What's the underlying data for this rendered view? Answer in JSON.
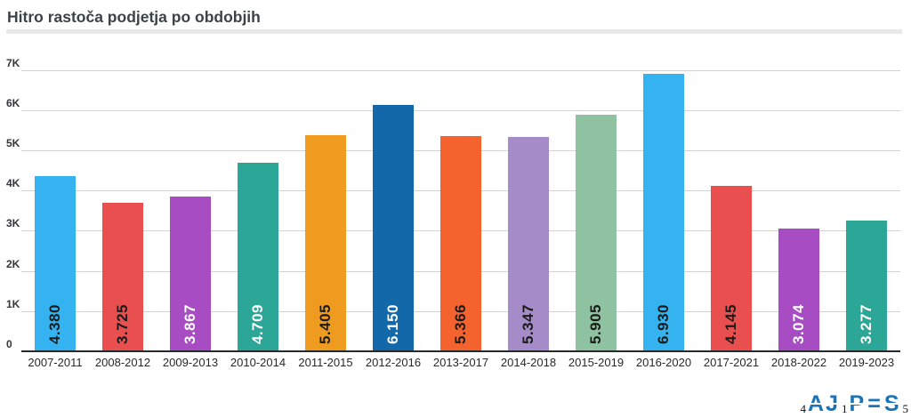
{
  "page": {
    "title": "Hitro rastoča podjetja po obdobjih"
  },
  "chart_data": {
    "type": "bar",
    "title": "Hitro rastoča podjetja po obdobjih",
    "categories": [
      "2007-2011",
      "2008-2012",
      "2009-2013",
      "2010-2014",
      "2011-2015",
      "2012-2016",
      "2013-2017",
      "2014-2018",
      "2015-2019",
      "2016-2020",
      "2017-2021",
      "2018-2022",
      "2019-2023"
    ],
    "values": [
      4380,
      3725,
      3867,
      4709,
      5405,
      6150,
      5366,
      5347,
      5905,
      6930,
      4145,
      3074,
      3277
    ],
    "value_labels": [
      "4.380",
      "3.725",
      "3.867",
      "4.709",
      "5.405",
      "6.150",
      "5.366",
      "5.347",
      "5.905",
      "6.930",
      "4.145",
      "3.074",
      "3.277"
    ],
    "bar_colors": [
      "#35b2f0",
      "#ea4f4f",
      "#a84cc3",
      "#2ba697",
      "#ef9b20",
      "#1268a9",
      "#f4632e",
      "#a58cc8",
      "#8fc2a0",
      "#35b2f0",
      "#ea4f4f",
      "#a84cc3",
      "#2ba697"
    ],
    "value_label_colors": [
      "#1b1b1b",
      "#1b1b1b",
      "#ffffff",
      "#ffffff",
      "#1b1b1b",
      "#ffffff",
      "#1b1b1b",
      "#1b1b1b",
      "#1b1b1b",
      "#1b1b1b",
      "#1b1b1b",
      "#ffffff",
      "#ffffff"
    ],
    "xlabel": "",
    "ylabel": "",
    "ylim": [
      0,
      7000
    ],
    "ytick_interval": 1000,
    "ytick_labels": [
      "0",
      "1K",
      "2K",
      "3K",
      "4K",
      "5K",
      "6K",
      "7K"
    ],
    "grid": true,
    "legend": "none"
  },
  "colors": {
    "grid": "#d4d4d4",
    "axis": "#26292c",
    "divider": "#e9e9e9",
    "title": "#3b4248"
  },
  "footer": {
    "logo": {
      "name": "AJPES",
      "color": "#1b74b8",
      "segments": [
        {
          "text": "4",
          "kind": "digit"
        },
        {
          "text": "AJ",
          "kind": "letters"
        },
        {
          "text": "1",
          "kind": "digit"
        },
        {
          "text": "P",
          "kind": "letters"
        },
        {
          "text": "=",
          "kind": "letters"
        },
        {
          "text": "S",
          "kind": "letters"
        },
        {
          "text": "5",
          "kind": "digit"
        }
      ]
    }
  }
}
